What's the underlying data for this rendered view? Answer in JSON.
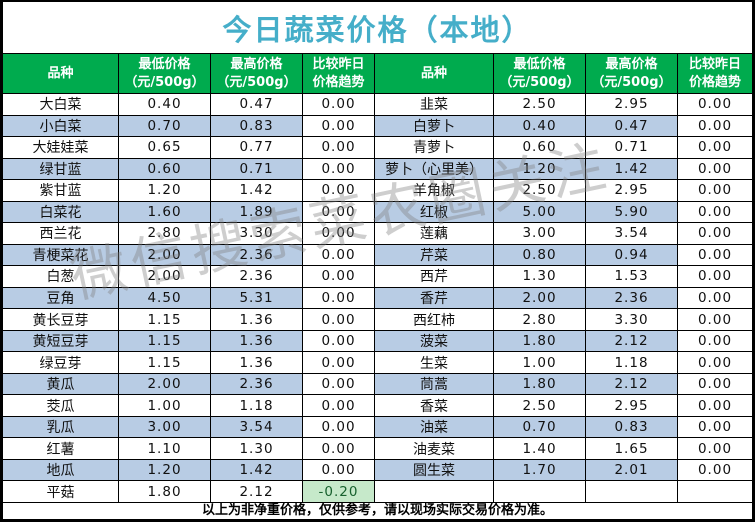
{
  "title": "今日蔬菜价格（本地）",
  "watermark": "微信搜索菜农圈关注",
  "footer_note": "以上为非净重价格，仅供参考，请以现场实际交易价格为准。",
  "columns": {
    "variety": "品种",
    "min_line1": "最低价格",
    "min_line2": "（元/500g）",
    "max_line1": "最高价格",
    "max_line2": "（元/500g）",
    "trend_line1": "比较昨日",
    "trend_line2": "价格趋势"
  },
  "colors": {
    "title_text": "#45AEC9",
    "header_bg": "#00AB4E",
    "header_text": "#FFFFFF",
    "alt_row_bg": "#B8CCE4",
    "good_cell_bg": "#C6E9CA",
    "good_cell_text": "#17612E",
    "border": "#000000"
  },
  "left_rows": [
    [
      "大白菜",
      "0.40",
      "0.47",
      "0.00"
    ],
    [
      "小白菜",
      "0.70",
      "0.83",
      "0.00"
    ],
    [
      "大娃娃菜",
      "0.65",
      "0.77",
      "0.00"
    ],
    [
      "绿甘蓝",
      "0.60",
      "0.71",
      "0.00"
    ],
    [
      "紫甘蓝",
      "1.20",
      "1.42",
      "0.00"
    ],
    [
      "白菜花",
      "1.60",
      "1.89",
      "0.00"
    ],
    [
      "西兰花",
      "2.80",
      "3.30",
      "0.00"
    ],
    [
      "青梗菜花",
      "2.00",
      "2.36",
      "0.00"
    ],
    [
      "白葱",
      "2.00",
      "2.36",
      "0.00"
    ],
    [
      "豆角",
      "4.50",
      "5.31",
      "0.00"
    ],
    [
      "黄长豆芽",
      "1.15",
      "1.36",
      "0.00"
    ],
    [
      "黄短豆芽",
      "1.15",
      "1.36",
      "0.00"
    ],
    [
      "绿豆芽",
      "1.15",
      "1.36",
      "0.00"
    ],
    [
      "黄瓜",
      "2.00",
      "2.36",
      "0.00"
    ],
    [
      "茭瓜",
      "1.00",
      "1.18",
      "0.00"
    ],
    [
      "乳瓜",
      "3.00",
      "3.54",
      "0.00"
    ],
    [
      "红薯",
      "1.10",
      "1.30",
      "0.00"
    ],
    [
      "地瓜",
      "1.20",
      "1.42",
      "0.00"
    ],
    [
      "平菇",
      "1.80",
      "2.12",
      "-0.20"
    ]
  ],
  "right_rows": [
    [
      "韭菜",
      "2.50",
      "2.95",
      "0.00"
    ],
    [
      "白萝卜",
      "0.40",
      "0.47",
      "0.00"
    ],
    [
      "青萝卜",
      "0.60",
      "0.71",
      "0.00"
    ],
    [
      "萝卜（心里美）",
      "1.20",
      "1.42",
      "0.00"
    ],
    [
      "羊角椒",
      "2.50",
      "2.95",
      "0.00"
    ],
    [
      "红椒",
      "5.00",
      "5.90",
      "0.00"
    ],
    [
      "莲藕",
      "3.00",
      "3.54",
      "0.00"
    ],
    [
      "芹菜",
      "0.80",
      "0.94",
      "0.00"
    ],
    [
      "西芹",
      "1.30",
      "1.53",
      "0.00"
    ],
    [
      "香芹",
      "2.00",
      "2.36",
      "0.00"
    ],
    [
      "西红柿",
      "2.80",
      "3.30",
      "0.00"
    ],
    [
      "菠菜",
      "1.80",
      "2.12",
      "0.00"
    ],
    [
      "生菜",
      "1.00",
      "1.18",
      "0.00"
    ],
    [
      "茼蒿",
      "1.80",
      "2.12",
      "0.00"
    ],
    [
      "香菜",
      "2.50",
      "2.95",
      "0.00"
    ],
    [
      "油菜",
      "0.70",
      "0.83",
      "0.00"
    ],
    [
      "油麦菜",
      "1.40",
      "1.65",
      "0.00"
    ],
    [
      "圆生菜",
      "1.70",
      "2.01",
      "0.00"
    ],
    [
      "",
      "",
      "",
      ""
    ]
  ],
  "good_cell": {
    "table": "left",
    "row_index": 18,
    "value": "-0.20"
  }
}
